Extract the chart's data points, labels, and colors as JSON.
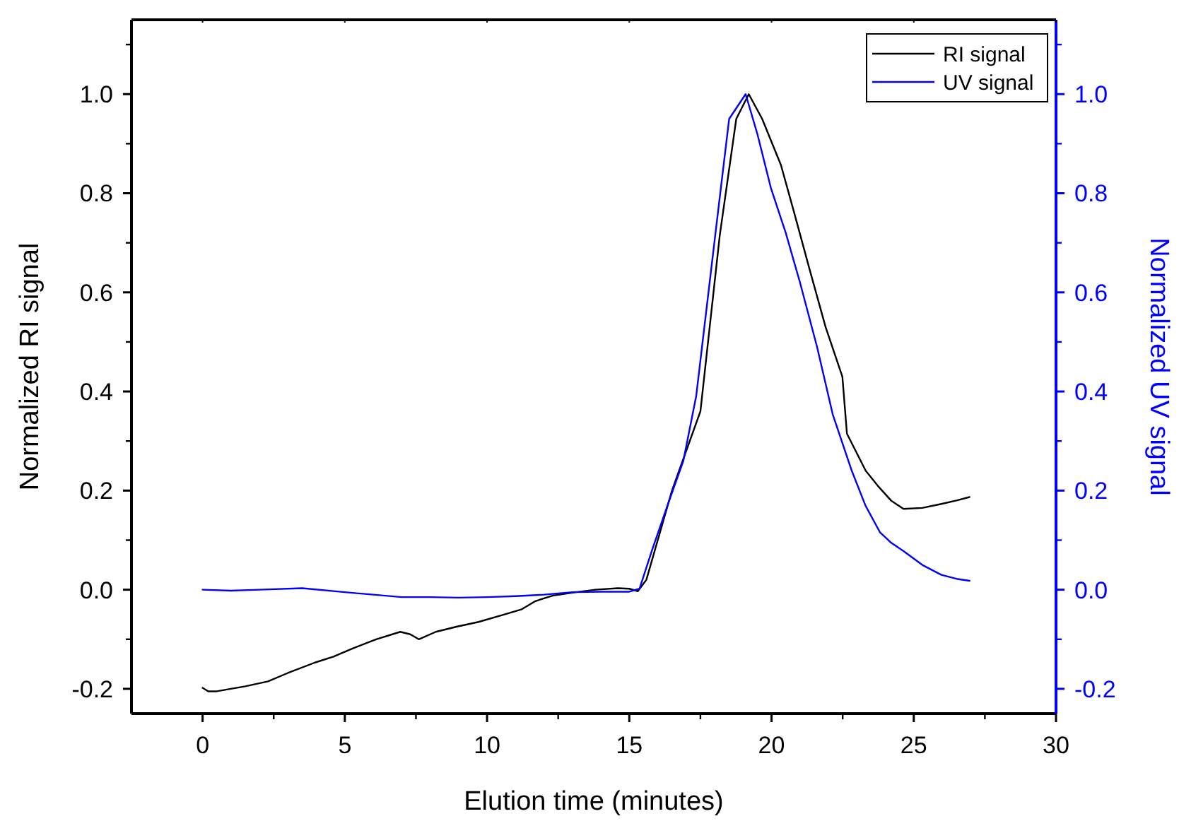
{
  "chart_data": {
    "type": "line",
    "xlabel": "Elution time (minutes)",
    "ylabel": "Normalized RI signal",
    "y2label": "Normalized UV signal",
    "xlim": [
      -2.5,
      30
    ],
    "xticks": [
      0,
      5,
      10,
      15,
      20,
      25,
      30
    ],
    "ylim": [
      -0.25,
      1.15
    ],
    "yticks": [
      {
        "value": -0.2,
        "label": "-0.2"
      },
      {
        "value": 0,
        "label": "0.0"
      },
      {
        "value": 0.2,
        "label": "0.2"
      },
      {
        "value": 0.4,
        "label": "0.4"
      },
      {
        "value": 0.6,
        "label": "0.6"
      },
      {
        "value": 0.8,
        "label": "0.8"
      },
      {
        "value": 1,
        "label": "1.0"
      }
    ],
    "y2lim": [
      -0.25,
      1.15
    ],
    "y2ticks": [
      {
        "value": -0.2,
        "label": "-0.2"
      },
      {
        "value": 0,
        "label": "0.0"
      },
      {
        "value": 0.2,
        "label": "0.2"
      },
      {
        "value": 0.4,
        "label": "0.4"
      },
      {
        "value": 0.6,
        "label": "0.6"
      },
      {
        "value": 0.8,
        "label": "0.8"
      },
      {
        "value": 1,
        "label": "1.0"
      }
    ],
    "legend": "top right",
    "grid": false,
    "line_style": "solid",
    "series": [
      {
        "name": "RI signal",
        "color": "#000000",
        "x": [
          0,
          0.2,
          0.5,
          1,
          1.5,
          2.3,
          3,
          3.95,
          4.6,
          5.3,
          6.1,
          6.95,
          7.3,
          7.6,
          8.2,
          8.9,
          9.7,
          10.55,
          11.2,
          11.7,
          12.3,
          13,
          13.8,
          14.6,
          15.0,
          15.3,
          15.6,
          16.0,
          16.5,
          17.0,
          17.5,
          18.18,
          18.76,
          19.2,
          19.67,
          20.33,
          20.8,
          21.33,
          21.9,
          22.49,
          22.65,
          23.31,
          23.73,
          24.2,
          24.64,
          25.3,
          25.97,
          26.5,
          26.96
        ],
        "values": [
          -0.198,
          -0.205,
          -0.205,
          -0.2,
          -0.195,
          -0.185,
          -0.168,
          -0.147,
          -0.135,
          -0.118,
          -0.1,
          -0.085,
          -0.09,
          -0.1,
          -0.085,
          -0.075,
          -0.065,
          -0.051,
          -0.04,
          -0.023,
          -0.012,
          -0.006,
          0.0,
          0.003,
          0.002,
          -0.003,
          0.02,
          0.1,
          0.2,
          0.28,
          0.36,
          0.715,
          0.95,
          1.0,
          0.95,
          0.857,
          0.76,
          0.648,
          0.53,
          0.43,
          0.315,
          0.24,
          0.21,
          0.18,
          0.163,
          0.165,
          0.173,
          0.18,
          0.187
        ]
      },
      {
        "name": "UV signal",
        "color": "#0000ff",
        "axis": "y2",
        "x": [
          0,
          1,
          2,
          3.5,
          5,
          6,
          7,
          8,
          9,
          10,
          11,
          12,
          13,
          14,
          15,
          15.36,
          15.8,
          16.36,
          16.9,
          17.35,
          18.02,
          18.51,
          19.09,
          19.5,
          19.98,
          20.5,
          21.0,
          21.6,
          22.15,
          22.82,
          23.3,
          23.81,
          24.2,
          24.64,
          25.3,
          25.97,
          26.5,
          26.96
        ],
        "values": [
          0.0,
          -0.002,
          0.0,
          0.003,
          -0.005,
          -0.01,
          -0.015,
          -0.015,
          -0.016,
          -0.015,
          -0.013,
          -0.01,
          -0.005,
          -0.004,
          -0.004,
          0.002,
          0.08,
          0.173,
          0.26,
          0.39,
          0.715,
          0.95,
          1.0,
          0.92,
          0.81,
          0.72,
          0.62,
          0.49,
          0.354,
          0.24,
          0.17,
          0.116,
          0.095,
          0.078,
          0.05,
          0.03,
          0.022,
          0.018
        ]
      }
    ]
  }
}
